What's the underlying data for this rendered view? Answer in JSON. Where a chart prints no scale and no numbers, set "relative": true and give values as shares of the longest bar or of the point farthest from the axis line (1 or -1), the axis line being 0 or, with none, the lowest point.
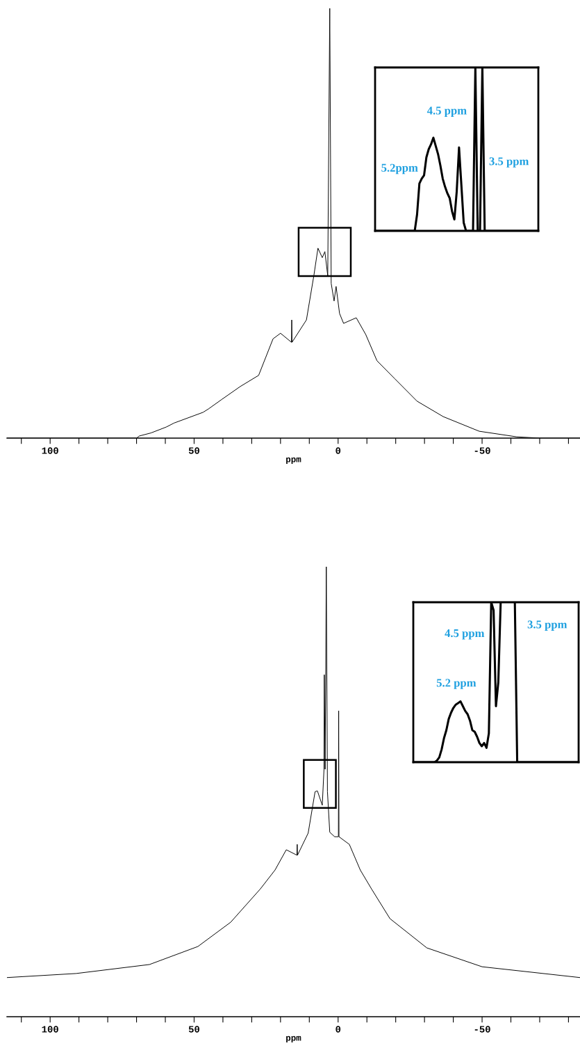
{
  "chart_data": [
    {
      "type": "line",
      "relative": true,
      "xlabel": "ppm",
      "xlim": [
        115,
        -84
      ],
      "xticks": [
        {
          "value": 110,
          "label": null
        },
        100,
        {
          "value": 90,
          "label": null
        },
        {
          "value": 80,
          "label": null
        },
        {
          "value": 70,
          "label": null
        },
        {
          "value": 60,
          "label": null
        },
        50,
        {
          "value": 40,
          "label": null
        },
        {
          "value": 30,
          "label": null
        },
        {
          "value": 20,
          "label": null
        },
        {
          "value": 10,
          "label": null
        },
        0,
        {
          "value": -10,
          "label": null
        },
        {
          "value": -20,
          "label": null
        },
        {
          "value": -30,
          "label": null
        },
        {
          "value": -40,
          "label": null
        },
        -50,
        {
          "value": -60,
          "label": null
        },
        {
          "value": -70,
          "label": null
        },
        {
          "value": -80,
          "label": null
        }
      ],
      "tick_labels": "x",
      "series": [
        {
          "color": "#000000",
          "x": [
            115,
            70,
            69,
            65,
            59.6,
            57,
            46.9,
            45,
            40.4,
            34,
            27.6,
            22.6,
            20,
            16.2,
            16.1,
            16.0,
            11,
            8.4,
            7.0,
            5.5,
            4.6,
            3.6,
            2.9,
            2.4,
            1.4,
            0.7,
            -0.5,
            -1.9,
            -6.3,
            -9.6,
            -13.5,
            -19.7,
            -27.4,
            -36.5,
            -49,
            -62,
            -70,
            -84
          ],
          "values": [
            0,
            0,
            0.005,
            0.012,
            0.026,
            0.035,
            0.06,
            0.068,
            0.09,
            0.12,
            0.146,
            0.231,
            0.244,
            0.223,
            0.275,
            0.223,
            0.275,
            0.379,
            0.442,
            0.42,
            0.434,
            0.378,
            1.0,
            0.36,
            0.319,
            0.353,
            0.29,
            0.267,
            0.28,
            0.241,
            0.18,
            0.138,
            0.086,
            0.05,
            0.016,
            0.003,
            0,
            0
          ]
        }
      ]
    },
    {
      "type": "line",
      "relative": true,
      "tick_labels": false,
      "categories": [
        null,
        null,
        null,
        null,
        null,
        null,
        null,
        null,
        null,
        null,
        null,
        null,
        null,
        null,
        null,
        null,
        null,
        null,
        null,
        null,
        null,
        null,
        null,
        null,
        null,
        null,
        null,
        null,
        null,
        null,
        null,
        null,
        null,
        null,
        null,
        null,
        null,
        null,
        null,
        null,
        null,
        null,
        null,
        null,
        null,
        null,
        null,
        null,
        null,
        null,
        null,
        null,
        null,
        null,
        null,
        null,
        null,
        null,
        null,
        null,
        null,
        null,
        null,
        null,
        null,
        null,
        null,
        null,
        null,
        null,
        null
      ],
      "annotations": [
        "4.5 ppm",
        "5.2ppm",
        "3.5 ppm"
      ],
      "series": [
        {
          "color": "#000000",
          "values": [
            0,
            0,
            0,
            0,
            0,
            0,
            0,
            0,
            0,
            0,
            0,
            0,
            0,
            0,
            0,
            0,
            0,
            0,
            0.1,
            0.29,
            0.32,
            0.34,
            0.45,
            0.5,
            0.53,
            0.57,
            0.52,
            0.47,
            0.4,
            0.32,
            0.27,
            0.23,
            0.2,
            0.12,
            0.07,
            0.24,
            0.51,
            0.28,
            0.05,
            0,
            0,
            0,
            0,
            1,
            0,
            0,
            1,
            0,
            0,
            0,
            0,
            0,
            0,
            0,
            0,
            0,
            0,
            0,
            0,
            0,
            0,
            0,
            0,
            0,
            0,
            0,
            0,
            0,
            0,
            0,
            0
          ]
        }
      ]
    },
    {
      "type": "line",
      "relative": true,
      "xlabel": "ppm",
      "xlim": [
        115,
        -84
      ],
      "xticks": [
        {
          "value": 110,
          "label": null
        },
        100,
        {
          "value": 90,
          "label": null
        },
        {
          "value": 80,
          "label": null
        },
        {
          "value": 70,
          "label": null
        },
        {
          "value": 60,
          "label": null
        },
        50,
        {
          "value": 40,
          "label": null
        },
        {
          "value": 30,
          "label": null
        },
        {
          "value": 20,
          "label": null
        },
        {
          "value": 10,
          "label": null
        },
        0,
        {
          "value": -10,
          "label": null
        },
        {
          "value": -20,
          "label": null
        },
        {
          "value": -30,
          "label": null
        },
        {
          "value": -40,
          "label": null
        },
        -50,
        {
          "value": -60,
          "label": null
        },
        {
          "value": -70,
          "label": null
        },
        {
          "value": -80,
          "label": null
        }
      ],
      "tick_labels": "x",
      "series": [
        {
          "color": "#000000",
          "x": [
            115,
            91,
            65.5,
            48.7,
            37.3,
            27,
            21.9,
            18,
            14.3,
            14.2,
            14.1,
            10.4,
            8,
            7.2,
            5.5,
            4.9,
            4.8,
            4.5,
            4.1,
            3.7,
            2.9,
            1.2,
            -0.1,
            -0.2,
            -0.3,
            -3.9,
            -7.7,
            -11.6,
            -18,
            -30.8,
            -50,
            -84
          ],
          "values": [
            0.087,
            0.096,
            0.116,
            0.156,
            0.21,
            0.284,
            0.326,
            0.371,
            0.359,
            0.383,
            0.359,
            0.408,
            0.5,
            0.502,
            0.47,
            0.55,
            0.76,
            0.55,
            1.0,
            0.5,
            0.41,
            0.4,
            0.4,
            0.68,
            0.4,
            0.383,
            0.326,
            0.284,
            0.218,
            0.153,
            0.111,
            0.087
          ]
        }
      ]
    },
    {
      "type": "line",
      "relative": true,
      "tick_labels": false,
      "categories": [
        null,
        null,
        null,
        null,
        null,
        null,
        null,
        null,
        null,
        null,
        null,
        null,
        null,
        null,
        null,
        null,
        null,
        null,
        null,
        null,
        null,
        null,
        null,
        null,
        null,
        null,
        null,
        null,
        null,
        null,
        null,
        null,
        null,
        null,
        null,
        null,
        null,
        null,
        null,
        null,
        null,
        null,
        null,
        null,
        null,
        null,
        null,
        null,
        null,
        null,
        null,
        null,
        null,
        null,
        null,
        null,
        null,
        null,
        null,
        null,
        null,
        null,
        null,
        null,
        null,
        null,
        null,
        null,
        null,
        null,
        null
      ],
      "annotations": [
        "3.5 ppm",
        "4.5 ppm",
        "5.2 ppm"
      ],
      "series": [
        {
          "color": "#000000",
          "values": [
            0,
            0,
            0,
            0,
            0,
            0,
            0,
            0,
            0,
            0,
            0.01,
            0.03,
            0.08,
            0.15,
            0.2,
            0.27,
            0.31,
            0.34,
            0.36,
            0.37,
            0.38,
            0.35,
            0.32,
            0.3,
            0.26,
            0.2,
            0.19,
            0.16,
            0.12,
            0.1,
            0.12,
            0.09,
            0.18,
            1.0,
            0.95,
            0.35,
            0.5,
            1.0,
            null,
            null,
            null,
            null,
            null,
            1.0,
            0,
            0,
            0,
            0,
            0,
            0,
            0,
            0,
            0,
            0,
            0,
            0,
            0,
            0,
            0,
            0,
            0,
            0,
            0,
            0,
            0,
            0,
            0,
            0,
            0,
            0,
            0
          ]
        }
      ]
    }
  ]
}
